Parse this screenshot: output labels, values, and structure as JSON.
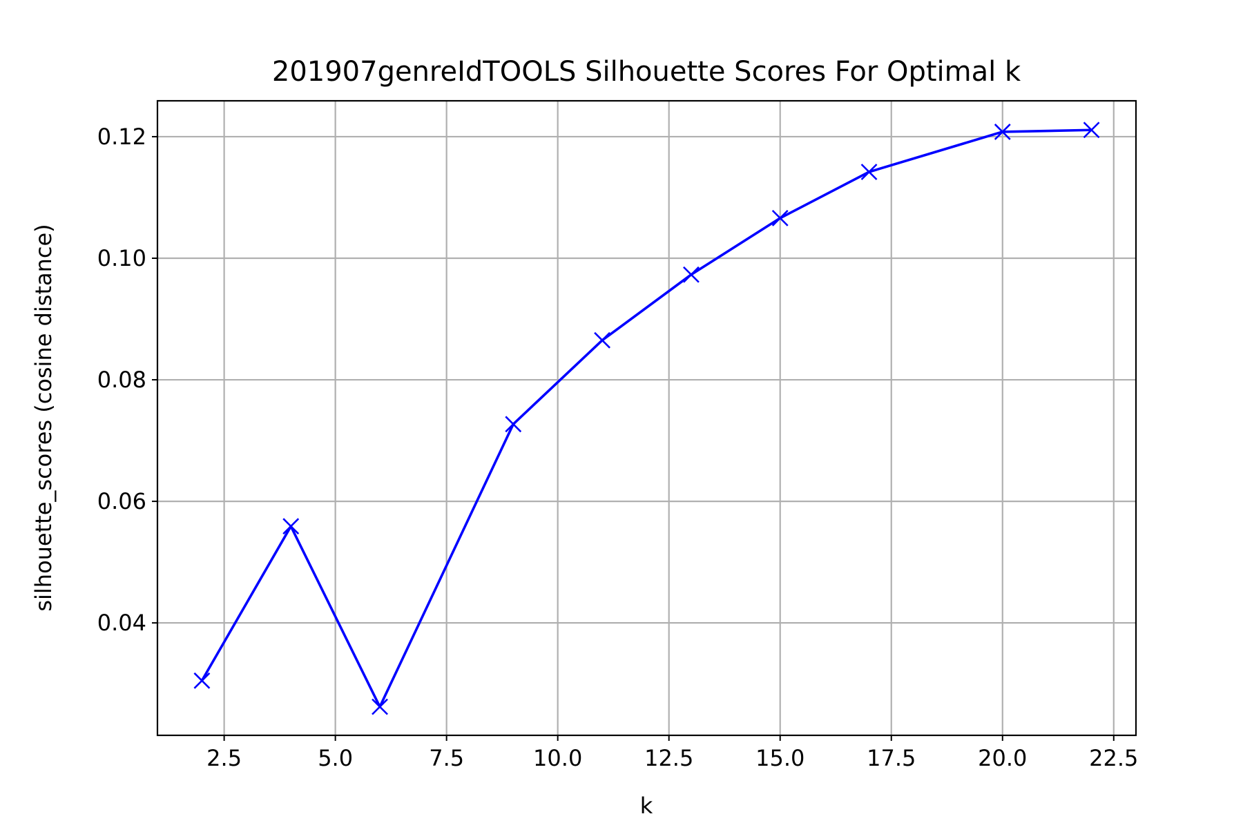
{
  "chart_data": {
    "type": "line",
    "title": "201907genreIdTOOLS Silhouette Scores For Optimal k",
    "xlabel": "k",
    "ylabel": "silhouette_scores (cosine distance)",
    "xlim": [
      1.0,
      23.0
    ],
    "ylim": [
      0.0215,
      0.1259
    ],
    "x_ticks": [
      2.5,
      5.0,
      7.5,
      10.0,
      12.5,
      15.0,
      17.5,
      20.0,
      22.5
    ],
    "x_tick_labels": [
      "2.5",
      "5.0",
      "7.5",
      "10.0",
      "12.5",
      "15.0",
      "17.5",
      "20.0",
      "22.5"
    ],
    "y_ticks": [
      0.04,
      0.06,
      0.08,
      0.1,
      0.12
    ],
    "y_tick_labels": [
      "0.04",
      "0.06",
      "0.08",
      "0.10",
      "0.12"
    ],
    "grid": true,
    "legend": "none",
    "series": [
      {
        "color": "#0000ff",
        "marker": "x",
        "x": [
          2,
          4,
          6,
          9,
          11,
          13,
          15,
          17,
          20,
          22
        ],
        "y": [
          0.0305,
          0.0559,
          0.0262,
          0.0727,
          0.0865,
          0.0973,
          0.1066,
          0.1142,
          0.1208,
          0.1211
        ]
      }
    ]
  }
}
